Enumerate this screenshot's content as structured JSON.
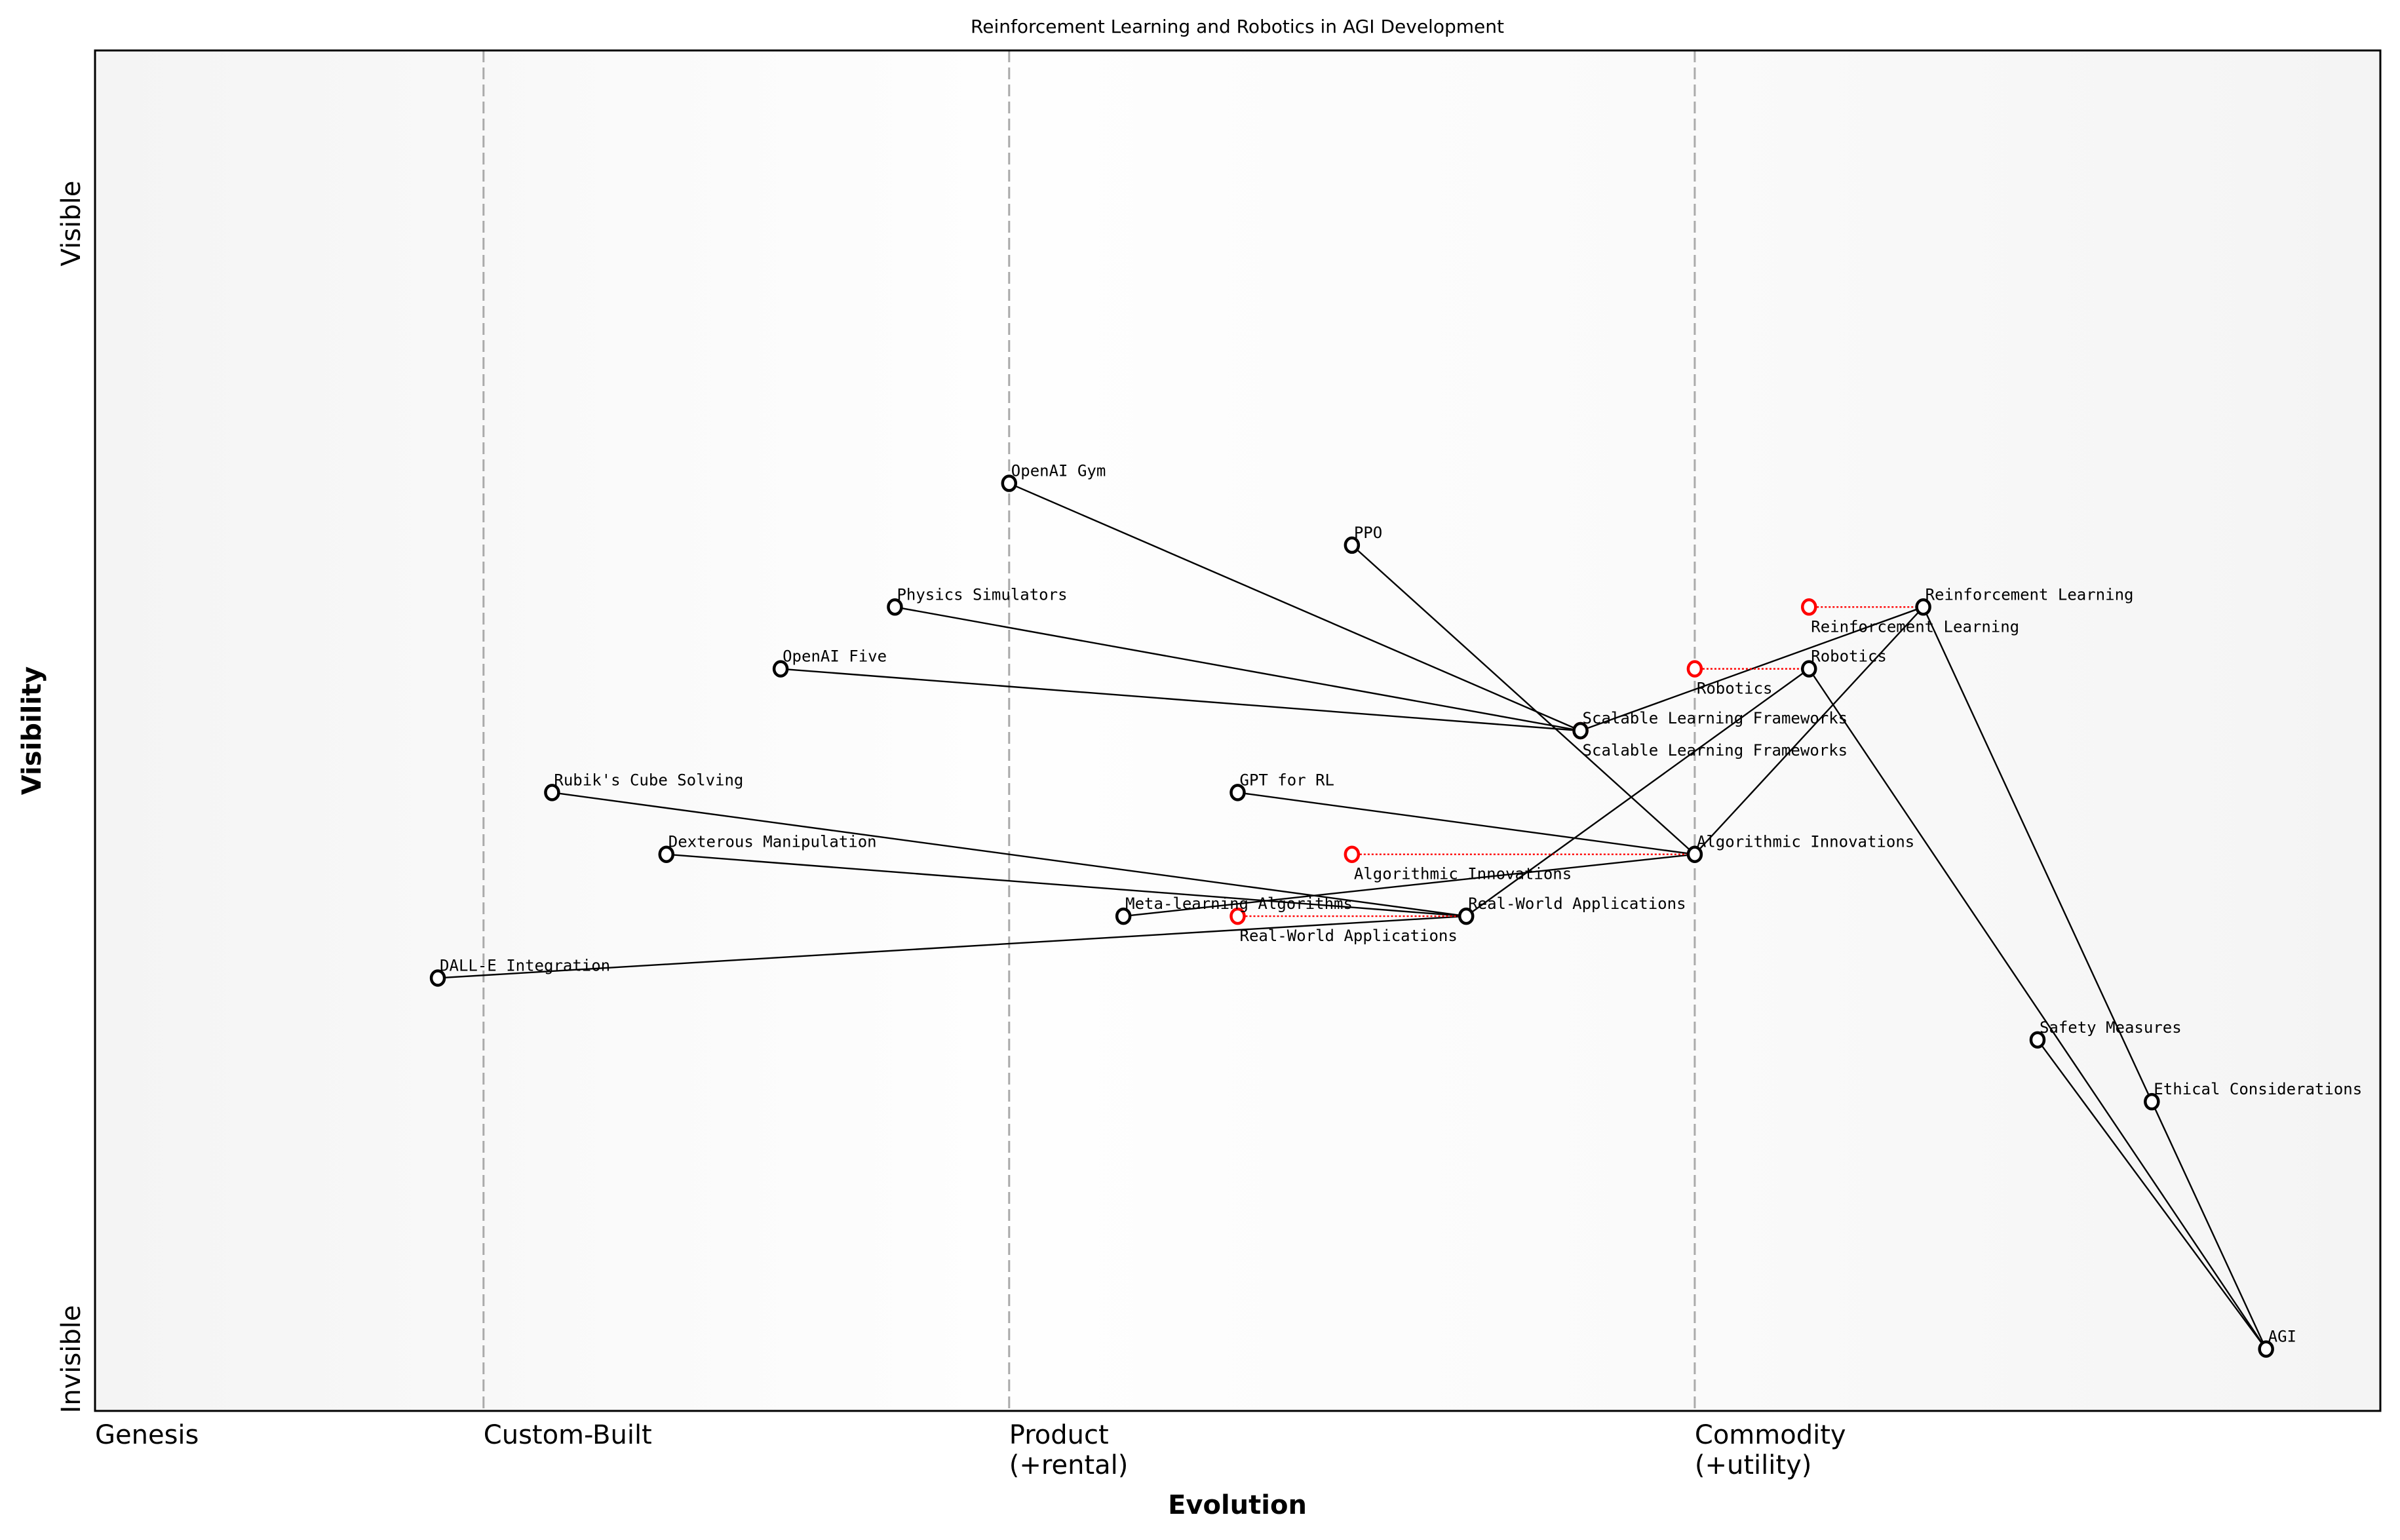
{
  "chart_data": {
    "type": "scatter",
    "subtype": "wardley-map",
    "title": "Reinforcement Learning and Robotics in AGI Development",
    "xlabel": "Evolution",
    "ylabel": "Visibility",
    "xlim": [
      0,
      1
    ],
    "ylim": [
      -0.05,
      1.05
    ],
    "grid": false,
    "x_stages": [
      {
        "x": 0.0,
        "label": "Genesis"
      },
      {
        "x": 0.17,
        "label": "Custom-Built"
      },
      {
        "x": 0.4,
        "label": "Product\n(+rental)"
      },
      {
        "x": 0.7,
        "label": "Commodity\n(+utility)"
      }
    ],
    "y_labels": {
      "top": "Visible",
      "bottom": "Invisible"
    },
    "colors": {
      "node": "#000000",
      "evolve": "#ff0000",
      "stage_line": "#aaaaaa"
    },
    "nodes": [
      {
        "name": "OpenAI Gym",
        "x": 0.4,
        "y": 0.7
      },
      {
        "name": "PPO",
        "x": 0.55,
        "y": 0.65
      },
      {
        "name": "Physics Simulators",
        "x": 0.35,
        "y": 0.6
      },
      {
        "name": "OpenAI Five",
        "x": 0.3,
        "y": 0.55
      },
      {
        "name": "Scalable Learning Frameworks",
        "x": 0.65,
        "y": 0.5
      },
      {
        "name": "Rubik's Cube Solving",
        "x": 0.2,
        "y": 0.45
      },
      {
        "name": "GPT for RL",
        "x": 0.5,
        "y": 0.45
      },
      {
        "name": "Dexterous Manipulation",
        "x": 0.25,
        "y": 0.4
      },
      {
        "name": "Algorithmic Innovations",
        "x": 0.7,
        "y": 0.4
      },
      {
        "name": "Meta-learning Algorithms",
        "x": 0.45,
        "y": 0.35
      },
      {
        "name": "Real-World Applications",
        "x": 0.6,
        "y": 0.35
      },
      {
        "name": "DALL-E Integration",
        "x": 0.15,
        "y": 0.3
      },
      {
        "name": "Reinforcement Learning",
        "x": 0.8,
        "y": 0.6
      },
      {
        "name": "Robotics",
        "x": 0.75,
        "y": 0.55
      },
      {
        "name": "Safety Measures",
        "x": 0.85,
        "y": 0.25
      },
      {
        "name": "Ethical Considerations",
        "x": 0.9,
        "y": 0.2
      },
      {
        "name": "AGI",
        "x": 0.95,
        "y": 0.0
      }
    ],
    "evolutions": [
      {
        "name": "Reinforcement Learning",
        "from_x": 0.75,
        "to_x": 0.8,
        "y": 0.6
      },
      {
        "name": "Robotics",
        "from_x": 0.7,
        "to_x": 0.75,
        "y": 0.55
      },
      {
        "name": "Scalable Learning Frameworks",
        "from_x": 0.65,
        "to_x": 0.65,
        "y": 0.5
      },
      {
        "name": "Algorithmic Innovations",
        "from_x": 0.55,
        "to_x": 0.7,
        "y": 0.4
      },
      {
        "name": "Real-World Applications",
        "from_x": 0.5,
        "to_x": 0.6,
        "y": 0.35
      }
    ],
    "links": [
      [
        "OpenAI Gym",
        "Scalable Learning Frameworks"
      ],
      [
        "Physics Simulators",
        "Scalable Learning Frameworks"
      ],
      [
        "OpenAI Five",
        "Scalable Learning Frameworks"
      ],
      [
        "PPO",
        "Algorithmic Innovations"
      ],
      [
        "GPT for RL",
        "Algorithmic Innovations"
      ],
      [
        "Meta-learning Algorithms",
        "Algorithmic Innovations"
      ],
      [
        "Rubik's Cube Solving",
        "Real-World Applications"
      ],
      [
        "Dexterous Manipulation",
        "Real-World Applications"
      ],
      [
        "DALL-E Integration",
        "Real-World Applications"
      ],
      [
        "Scalable Learning Frameworks",
        "Reinforcement Learning"
      ],
      [
        "Algorithmic Innovations",
        "Reinforcement Learning"
      ],
      [
        "Real-World Applications",
        "Robotics"
      ],
      [
        "Reinforcement Learning",
        "Ethical Considerations"
      ],
      [
        "Robotics",
        "AGI"
      ],
      [
        "Safety Measures",
        "AGI"
      ],
      [
        "Ethical Considerations",
        "AGI"
      ]
    ]
  }
}
